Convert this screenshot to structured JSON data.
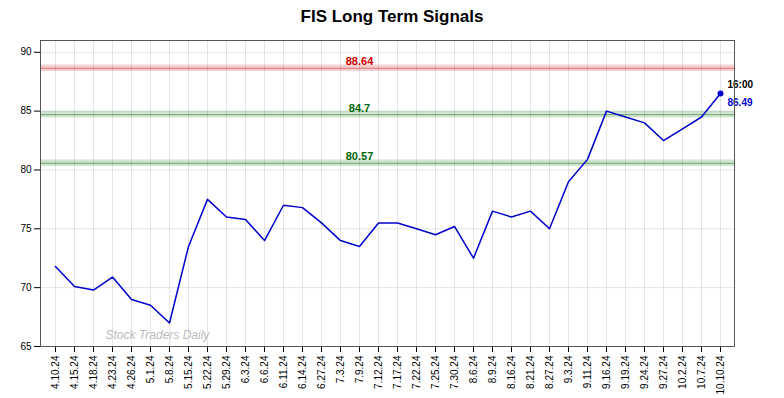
{
  "chart_data": {
    "type": "line",
    "title": "FIS Long Term Signals",
    "categories": [
      "4.10.24",
      "4.15.24",
      "4.18.24",
      "4.23.24",
      "4.26.24",
      "5.1.24",
      "5.8.24",
      "5.15.24",
      "5.22.24",
      "5.29.24",
      "6.3.24",
      "6.6.24",
      "6.11.24",
      "6.14.24",
      "6.27.24",
      "7.3.24",
      "7.9.24",
      "7.12.24",
      "7.17.24",
      "7.22.24",
      "7.25.24",
      "7.30.24",
      "8.6.24",
      "8.9.24",
      "8.16.24",
      "8.21.24",
      "8.27.24",
      "9.3.24",
      "9.11.24",
      "9.16.24",
      "9.19.24",
      "9.24.24",
      "9.27.24",
      "10.2.24",
      "10.7.24",
      "10.10.24"
    ],
    "values": [
      71.8,
      70.1,
      69.8,
      70.9,
      69.0,
      68.5,
      67.0,
      73.5,
      77.5,
      76.0,
      75.8,
      74.0,
      77.0,
      76.8,
      75.5,
      74.0,
      73.5,
      75.5,
      75.5,
      75.0,
      74.5,
      75.2,
      72.5,
      76.5,
      76.0,
      76.5,
      75.0,
      79.0,
      80.9,
      85.0,
      84.5,
      84.0,
      82.5,
      83.5,
      84.5,
      86.49
    ],
    "color": "#0000cc",
    "ylim": [
      65,
      91
    ],
    "yticks": [
      65,
      70,
      75,
      80,
      85,
      90
    ],
    "grid": true,
    "hlines": [
      {
        "y": 88.64,
        "label": "88.64",
        "color": "#cc0000"
      },
      {
        "y": 84.7,
        "label": "84.7",
        "color": "#006600"
      },
      {
        "y": 80.57,
        "label": "80.57",
        "color": "#006600"
      }
    ],
    "last_point": {
      "value": 86.49,
      "label": "86.49",
      "time": "16:00"
    },
    "watermark": "Stock Traders Daily"
  }
}
